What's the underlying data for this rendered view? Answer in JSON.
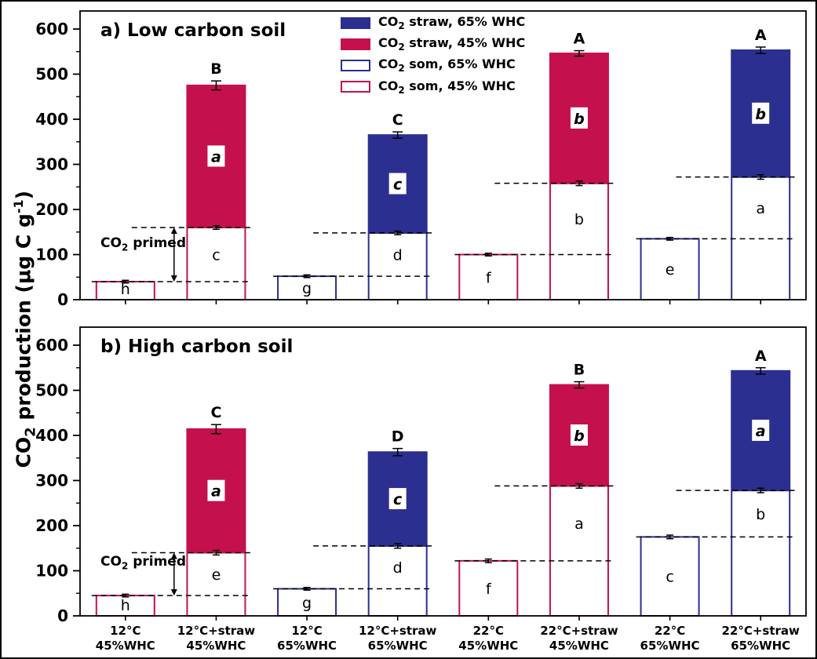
{
  "figure": {
    "colors": {
      "straw_65": "#2b2f8f",
      "straw_45": "#c4114d",
      "axis": "#000000",
      "dashed_line": "#000000"
    },
    "y_axis_label": {
      "pre": "CO",
      "sub": "2",
      "mid": " production (µg C g",
      "sup": "-1",
      "post": ")"
    },
    "legend": [
      {
        "swatch": "straw-65-swatch",
        "pre": "CO",
        "sub": "2",
        "post": " straw, 65% WHC"
      },
      {
        "swatch": "straw-45-swatch",
        "pre": "CO",
        "sub": "2",
        "post": " straw, 45% WHC"
      },
      {
        "swatch": "som-65-swatch",
        "pre": "CO",
        "sub": "2",
        "post": " som, 65% WHC"
      },
      {
        "swatch": "som-45-swatch",
        "pre": "CO",
        "sub": "2",
        "post": " som, 45% WHC"
      }
    ],
    "primed_annotation": {
      "pre": "CO",
      "sub": "2",
      "post": " primed"
    }
  },
  "chart_data": {
    "type": "bar",
    "stacked": true,
    "ylim": [
      0,
      640
    ],
    "yticks": [
      0,
      100,
      200,
      300,
      400,
      500,
      600
    ],
    "minor_tick_step": 50,
    "grid": false,
    "legend_position": "top-center-panel-a",
    "categories": [
      {
        "line1": "12°C",
        "line2": "45%WHC"
      },
      {
        "line1": "12°C+straw",
        "line2": "45%WHC"
      },
      {
        "line1": "12°C",
        "line2": "65%WHC"
      },
      {
        "line1": "12°C+straw",
        "line2": "65%WHC"
      },
      {
        "line1": "22°C",
        "line2": "45%WHC"
      },
      {
        "line1": "22°C+straw",
        "line2": "45%WHC"
      },
      {
        "line1": "22°C",
        "line2": "65%WHC"
      },
      {
        "line1": "22°C+straw",
        "line2": "65%WHC"
      }
    ],
    "panels": [
      {
        "title": "a) Low carbon soil",
        "bars": [
          {
            "variant": "som45",
            "som": 40,
            "som_err": 3,
            "som_label": "h"
          },
          {
            "variant": "straw45",
            "som": 160,
            "som_err": 4,
            "som_label": "c",
            "total": 475,
            "total_err": 10,
            "straw_label": "a",
            "sig": "B"
          },
          {
            "variant": "som65",
            "som": 52,
            "som_err": 3,
            "som_label": "g"
          },
          {
            "variant": "straw65",
            "som": 148,
            "som_err": 4,
            "som_label": "d",
            "total": 365,
            "total_err": 7,
            "straw_label": "c",
            "sig": "C"
          },
          {
            "variant": "som45",
            "som": 100,
            "som_err": 3,
            "som_label": "f"
          },
          {
            "variant": "straw45",
            "som": 258,
            "som_err": 5,
            "som_label": "b",
            "total": 546,
            "total_err": 6,
            "straw_label": "b",
            "sig": "A"
          },
          {
            "variant": "som65",
            "som": 135,
            "som_err": 3,
            "som_label": "e"
          },
          {
            "variant": "straw65",
            "som": 272,
            "som_err": 5,
            "som_label": "a",
            "total": 553,
            "total_err": 7,
            "straw_label": "b",
            "sig": "A"
          }
        ]
      },
      {
        "title": "b) High carbon soil",
        "bars": [
          {
            "variant": "som45",
            "som": 45,
            "som_err": 3,
            "som_label": "h"
          },
          {
            "variant": "straw45",
            "som": 140,
            "som_err": 5,
            "som_label": "e",
            "total": 414,
            "total_err": 10,
            "straw_label": "a",
            "sig": "C"
          },
          {
            "variant": "som65",
            "som": 60,
            "som_err": 3,
            "som_label": "g"
          },
          {
            "variant": "straw65",
            "som": 155,
            "som_err": 5,
            "som_label": "d",
            "total": 363,
            "total_err": 8,
            "straw_label": "c",
            "sig": "D"
          },
          {
            "variant": "som45",
            "som": 122,
            "som_err": 4,
            "som_label": "f"
          },
          {
            "variant": "straw45",
            "som": 288,
            "som_err": 5,
            "som_label": "a",
            "total": 512,
            "total_err": 7,
            "straw_label": "b",
            "sig": "B"
          },
          {
            "variant": "som65",
            "som": 175,
            "som_err": 4,
            "som_label": "c"
          },
          {
            "variant": "straw65",
            "som": 278,
            "som_err": 5,
            "som_label": "b",
            "total": 543,
            "total_err": 7,
            "straw_label": "a",
            "sig": "A"
          }
        ]
      }
    ]
  }
}
